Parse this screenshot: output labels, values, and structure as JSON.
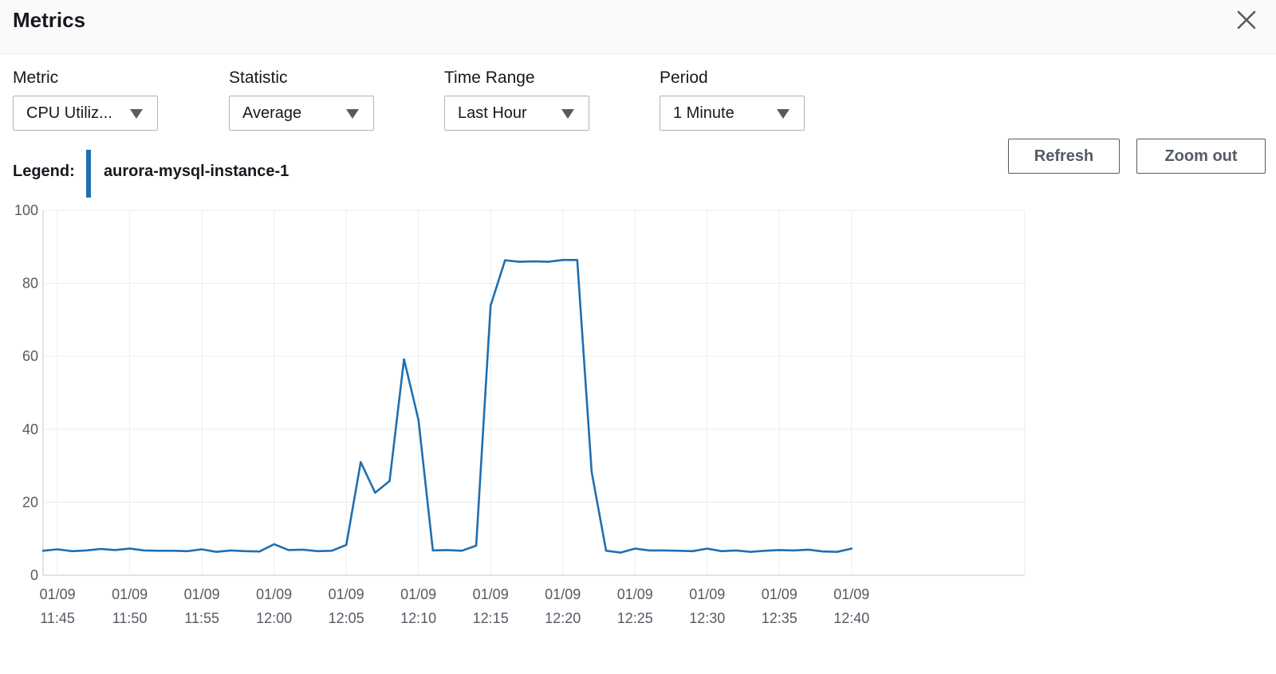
{
  "header": {
    "title": "Metrics",
    "close_icon": "close-icon"
  },
  "filters": {
    "metric": {
      "label": "Metric",
      "value": "CPU Utiliz..."
    },
    "statistic": {
      "label": "Statistic",
      "value": "Average"
    },
    "time_range": {
      "label": "Time Range",
      "value": "Last Hour"
    },
    "period": {
      "label": "Period",
      "value": "1 Minute"
    }
  },
  "legend": {
    "label": "Legend:",
    "series_name": "aurora-mysql-instance-1",
    "color": "#1f6fb0"
  },
  "actions": {
    "refresh_label": "Refresh",
    "zoom_out_label": "Zoom out"
  },
  "chart_data": {
    "type": "line",
    "title": "",
    "xlabel": "",
    "ylabel": "",
    "ylim": [
      0,
      100
    ],
    "y_ticks": [
      0,
      20,
      40,
      60,
      80,
      100
    ],
    "x_range": [
      "11:44",
      "12:52"
    ],
    "x_ticks": [
      {
        "date": "01/09",
        "time": "11:45"
      },
      {
        "date": "01/09",
        "time": "11:50"
      },
      {
        "date": "01/09",
        "time": "11:55"
      },
      {
        "date": "01/09",
        "time": "12:00"
      },
      {
        "date": "01/09",
        "time": "12:05"
      },
      {
        "date": "01/09",
        "time": "12:10"
      },
      {
        "date": "01/09",
        "time": "12:15"
      },
      {
        "date": "01/09",
        "time": "12:20"
      },
      {
        "date": "01/09",
        "time": "12:25"
      },
      {
        "date": "01/09",
        "time": "12:30"
      },
      {
        "date": "01/09",
        "time": "12:35"
      },
      {
        "date": "01/09",
        "time": "12:40"
      }
    ],
    "grid": true,
    "series": [
      {
        "name": "aurora-mysql-instance-1",
        "color": "#1f6fb0",
        "x": [
          "11:44",
          "11:45",
          "11:46",
          "11:47",
          "11:48",
          "11:49",
          "11:50",
          "11:51",
          "11:52",
          "11:53",
          "11:54",
          "11:55",
          "11:56",
          "11:57",
          "11:58",
          "11:59",
          "12:00",
          "12:01",
          "12:02",
          "12:03",
          "12:04",
          "12:05",
          "12:06",
          "12:07",
          "12:08",
          "12:09",
          "12:10",
          "12:11",
          "12:12",
          "12:13",
          "12:14",
          "12:15",
          "12:16",
          "12:17",
          "12:18",
          "12:19",
          "12:20",
          "12:21",
          "12:22",
          "12:23",
          "12:24",
          "12:25",
          "12:26",
          "12:27",
          "12:28",
          "12:29",
          "12:30",
          "12:31",
          "12:32",
          "12:33",
          "12:34",
          "12:35",
          "12:36",
          "12:37",
          "12:38",
          "12:39",
          "12:40"
        ],
        "values": [
          6.7,
          7.1,
          6.6,
          6.8,
          7.2,
          6.9,
          7.3,
          6.8,
          6.7,
          6.7,
          6.6,
          7.1,
          6.4,
          6.8,
          6.6,
          6.5,
          8.5,
          6.9,
          7.0,
          6.6,
          6.7,
          8.3,
          31.0,
          22.6,
          25.8,
          59.2,
          42.6,
          6.8,
          6.9,
          6.7,
          8.1,
          73.9,
          86.3,
          85.9,
          86.0,
          85.9,
          86.4,
          86.4,
          28.3,
          6.7,
          6.2,
          7.3,
          6.8,
          6.8,
          6.7,
          6.6,
          7.3,
          6.6,
          6.8,
          6.4,
          6.7,
          6.9,
          6.8,
          7.0,
          6.5,
          6.4,
          7.3
        ]
      }
    ]
  }
}
